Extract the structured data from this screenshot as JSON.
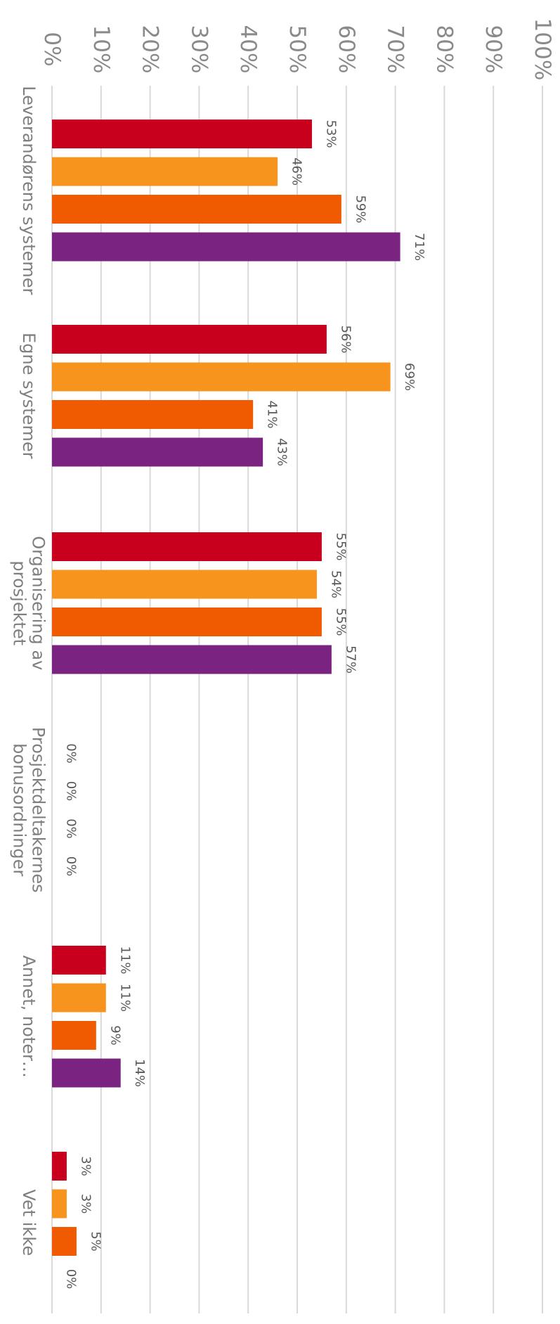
{
  "chart_data": {
    "type": "bar",
    "orientation": "horizontal",
    "rotated": "90deg-clockwise",
    "categories": [
      [
        "Leverandørens systemer"
      ],
      [
        "Egne systemer"
      ],
      [
        "Organisering av",
        "prosjektet"
      ],
      [
        "Prosjektdeltakernes",
        "bonusordninger"
      ],
      [
        "Annet, noter…"
      ],
      [
        "Vet ikke"
      ]
    ],
    "series": [
      {
        "color": "#c8001e",
        "values": [
          53,
          56,
          55,
          0,
          11,
          3
        ]
      },
      {
        "color": "#f7941d",
        "values": [
          46,
          69,
          54,
          0,
          11,
          3
        ]
      },
      {
        "color": "#f05a00",
        "values": [
          59,
          41,
          55,
          0,
          9,
          5
        ]
      },
      {
        "color": "#7b2380",
        "values": [
          71,
          43,
          57,
          0,
          14,
          0
        ]
      }
    ],
    "data_labels": [
      [
        "53%",
        "46%",
        "59%",
        "71%"
      ],
      [
        "56%",
        "69%",
        "41%",
        "43%"
      ],
      [
        "55%",
        "54%",
        "55%",
        "57%"
      ],
      [
        "0%",
        "0%",
        "0%",
        "0%"
      ],
      [
        "11%",
        "11%",
        "9%",
        "14%"
      ],
      [
        "3%",
        "3%",
        "5%",
        "0%"
      ]
    ],
    "xlim": [
      0,
      100
    ],
    "ticks": [
      "0%",
      "10%",
      "20%",
      "30%",
      "40%",
      "50%",
      "60%",
      "70%",
      "80%",
      "90%",
      "100%"
    ],
    "grid": true,
    "legend": false,
    "title": "",
    "xlabel": "",
    "ylabel": ""
  }
}
